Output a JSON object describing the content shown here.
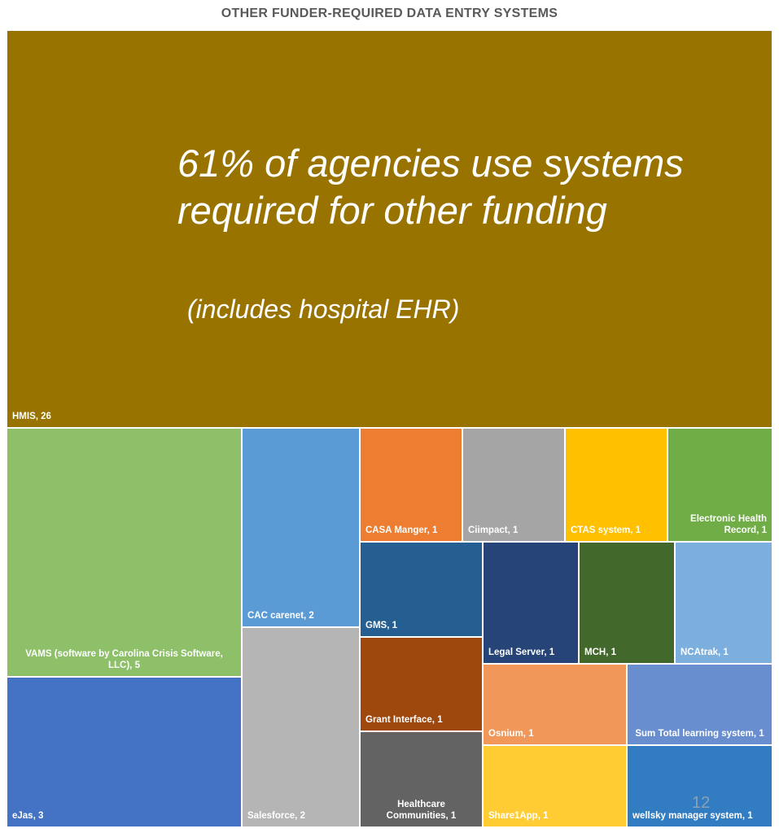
{
  "page_title": "OTHER FUNDER-REQUIRED DATA ENTRY SYSTEMS",
  "annotation": {
    "main": "61% of agencies use systems required for other funding",
    "sub": "(includes hospital EHR)"
  },
  "page_number": "12",
  "chart_data": {
    "type": "treemap",
    "title": "OTHER FUNDER-REQUIRED DATA ENTRY SYSTEMS",
    "data_label_format": "{name}, {value}",
    "items": [
      {
        "name": "HMIS",
        "value": 26,
        "label": "HMIS, 26",
        "color": "#997300"
      },
      {
        "name": "VAMS (software by Carolina Crisis Software, LLC)",
        "value": 5,
        "label": "VAMS (software by Carolina Crisis Software, LLC), 5",
        "color": "#8DC069"
      },
      {
        "name": "eJas",
        "value": 3,
        "label": "eJas, 3",
        "color": "#4472C4"
      },
      {
        "name": "CAC carenet",
        "value": 2,
        "label": "CAC carenet, 2",
        "color": "#5B9BD5"
      },
      {
        "name": "Salesforce",
        "value": 2,
        "label": "Salesforce, 2",
        "color": "#B5B5B5"
      },
      {
        "name": "CASA Manger",
        "value": 1,
        "label": "CASA Manger, 1",
        "color": "#ED7D31"
      },
      {
        "name": "Ciimpact",
        "value": 1,
        "label": "Ciimpact, 1",
        "color": "#A5A5A5"
      },
      {
        "name": "CTAS system",
        "value": 1,
        "label": "CTAS system, 1",
        "color": "#FFC000"
      },
      {
        "name": "Electronic Health Record",
        "value": 1,
        "label": "Electronic Health Record, 1",
        "color": "#70AD47"
      },
      {
        "name": "GMS",
        "value": 1,
        "label": "GMS, 1",
        "color": "#255E91"
      },
      {
        "name": "Legal Server",
        "value": 1,
        "label": "Legal Server, 1",
        "color": "#264478"
      },
      {
        "name": "MCH",
        "value": 1,
        "label": "MCH, 1",
        "color": "#43682B"
      },
      {
        "name": "NCAtrak",
        "value": 1,
        "label": "NCAtrak, 1",
        "color": "#7CAFDD"
      },
      {
        "name": "Grant Interface",
        "value": 1,
        "label": "Grant Interface, 1",
        "color": "#9E480E"
      },
      {
        "name": "Osnium",
        "value": 1,
        "label": "Osnium, 1",
        "color": "#F1975A"
      },
      {
        "name": "Sum Total learning system",
        "value": 1,
        "label": "Sum Total learning system, 1",
        "color": "#698ED0"
      },
      {
        "name": "Healthcare Communities",
        "value": 1,
        "label": "Healthcare Communities, 1",
        "color": "#636363"
      },
      {
        "name": "Share1App",
        "value": 1,
        "label": "Share1App, 1",
        "color": "#FFCD33"
      },
      {
        "name": "wellsky manager system",
        "value": 1,
        "label": "wellsky manager system, 1",
        "color": "#327DC2"
      }
    ]
  }
}
